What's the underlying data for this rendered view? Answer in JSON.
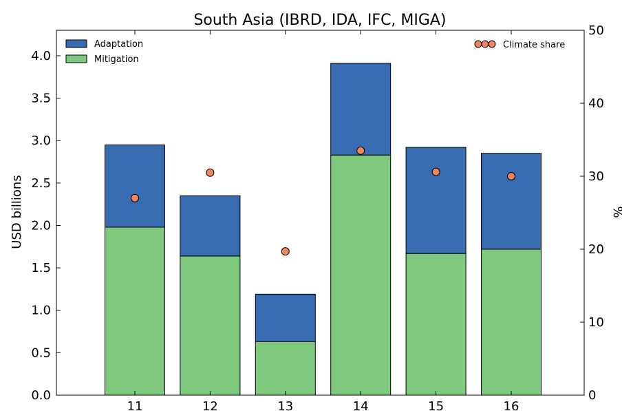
{
  "chart_data": {
    "type": "bar",
    "title": "South Asia (IBRD, IDA, IFC, MIGA)",
    "xlabel": "",
    "ylabel": "USD billions",
    "y2label": "%",
    "categories": [
      "11",
      "12",
      "13",
      "14",
      "15",
      "16"
    ],
    "stacked": true,
    "series": [
      {
        "name": "Mitigation",
        "values": [
          1.98,
          1.64,
          0.63,
          2.83,
          1.67,
          1.72
        ],
        "color": "#7fc97f",
        "axis": "left"
      },
      {
        "name": "Adaptation",
        "values": [
          0.97,
          0.71,
          0.56,
          1.08,
          1.25,
          1.13
        ],
        "color": "#386cb0",
        "axis": "left"
      },
      {
        "name": "Climate share",
        "type": "scatter",
        "values": [
          27.0,
          30.5,
          19.7,
          33.5,
          30.6,
          30.0
        ],
        "color": "#f0845c",
        "axis": "right"
      }
    ],
    "ylim": [
      0,
      4.3
    ],
    "y2lim": [
      0,
      50
    ],
    "yticks": [
      "0.0",
      "0.5",
      "1.0",
      "1.5",
      "2.0",
      "2.5",
      "3.0",
      "3.5",
      "4.0"
    ],
    "y2ticks": [
      "0",
      "10",
      "20",
      "30",
      "40",
      "50"
    ],
    "legend_left": [
      "Adaptation",
      "Mitigation"
    ],
    "legend_right": [
      "Climate share"
    ],
    "legend_left_position": "top-left",
    "legend_right_position": "top-right",
    "grid": false
  }
}
